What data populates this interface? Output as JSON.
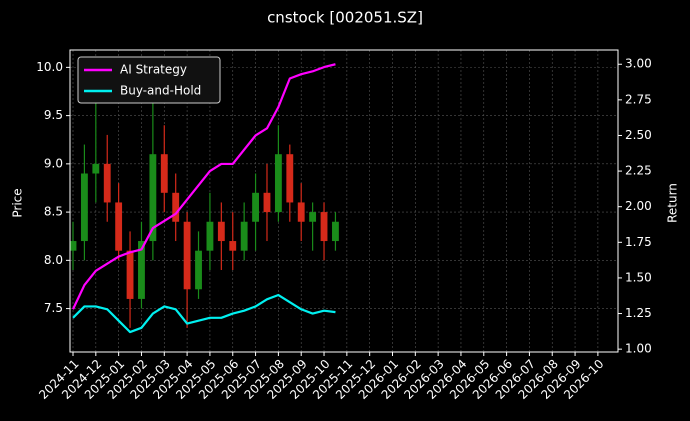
{
  "chart_data": {
    "type": "candlestick",
    "title": "cnstock [002051.SZ]",
    "y_label": "Price",
    "y2_label": "Return",
    "categories": [
      "2024-11",
      null,
      "2024-12",
      null,
      "2025-01",
      null,
      "2025-02",
      null,
      "2025-03",
      null,
      "2025-04",
      null,
      "2025-05",
      null,
      "2025-06",
      null,
      "2025-07",
      null,
      "2025-08",
      null,
      "2025-09",
      null,
      "2025-10",
      null,
      "2025-11",
      null,
      "2025-12",
      null,
      "2026-01",
      null,
      "2026-02",
      null,
      "2026-03",
      null,
      "2026-04",
      null,
      "2026-05",
      null,
      "2026-06",
      null,
      "2026-07",
      null,
      "2026-08",
      null,
      "2026-09",
      null,
      "2026-10",
      null
    ],
    "ohlc": {
      "open": [
        8.1,
        8.2,
        8.9,
        9.0,
        8.6,
        8.1,
        7.6,
        8.2,
        9.1,
        8.7,
        8.4,
        7.7,
        8.1,
        8.4,
        8.2,
        8.1,
        8.4,
        8.7,
        8.5,
        9.1,
        8.6,
        8.4,
        8.5,
        8.2,
        null,
        null,
        null,
        null,
        null,
        null,
        null,
        null,
        null,
        null,
        null,
        null,
        null,
        null,
        null,
        null,
        null,
        null,
        null,
        null,
        null,
        null,
        null,
        null
      ],
      "high": [
        8.4,
        9.2,
        9.8,
        9.3,
        8.8,
        8.3,
        8.4,
        9.7,
        9.4,
        8.9,
        8.5,
        8.3,
        8.7,
        8.6,
        8.5,
        8.6,
        8.9,
        9.0,
        9.4,
        9.2,
        8.8,
        8.6,
        8.6,
        8.5,
        null,
        null,
        null,
        null,
        null,
        null,
        null,
        null,
        null,
        null,
        null,
        null,
        null,
        null,
        null,
        null,
        null,
        null,
        null,
        null,
        null,
        null,
        null,
        null
      ],
      "low": [
        7.9,
        8.0,
        8.6,
        8.4,
        8.0,
        7.3,
        7.5,
        8.0,
        8.5,
        8.2,
        7.3,
        7.6,
        7.9,
        7.9,
        7.9,
        8.0,
        8.1,
        8.2,
        8.4,
        8.4,
        8.2,
        8.1,
        8.0,
        8.1,
        null,
        null,
        null,
        null,
        null,
        null,
        null,
        null,
        null,
        null,
        null,
        null,
        null,
        null,
        null,
        null,
        null,
        null,
        null,
        null,
        null,
        null,
        null,
        null
      ],
      "close": [
        8.2,
        8.9,
        9.0,
        8.6,
        8.1,
        7.6,
        8.2,
        9.1,
        8.7,
        8.4,
        7.7,
        8.1,
        8.4,
        8.2,
        8.1,
        8.4,
        8.7,
        8.5,
        9.1,
        8.6,
        8.4,
        8.5,
        8.2,
        8.4,
        null,
        null,
        null,
        null,
        null,
        null,
        null,
        null,
        null,
        null,
        null,
        null,
        null,
        null,
        null,
        null,
        null,
        null,
        null,
        null,
        null,
        null,
        null,
        null
      ],
      "up_color": "#1a8c1a",
      "down_color": "#d62a1a"
    },
    "series": [
      {
        "name": "AI Strategy",
        "color": "#ff00ff",
        "axis": "y2",
        "values": [
          1.28,
          1.45,
          1.55,
          1.6,
          1.65,
          1.68,
          1.7,
          1.85,
          1.9,
          1.95,
          2.05,
          2.15,
          2.25,
          2.3,
          2.3,
          2.4,
          2.5,
          2.55,
          2.7,
          2.9,
          2.93,
          2.95,
          2.98,
          3.0,
          null,
          null,
          null,
          null,
          null,
          null,
          null,
          null,
          null,
          null,
          null,
          null,
          null,
          null,
          null,
          null,
          null,
          null,
          null,
          null,
          null,
          null,
          null,
          null
        ]
      },
      {
        "name": "Buy-and-Hold",
        "color": "#00f0f0",
        "axis": "y2",
        "values": [
          1.22,
          1.3,
          1.3,
          1.28,
          1.2,
          1.12,
          1.15,
          1.25,
          1.3,
          1.28,
          1.18,
          1.2,
          1.22,
          1.22,
          1.25,
          1.27,
          1.3,
          1.35,
          1.38,
          1.33,
          1.28,
          1.25,
          1.27,
          1.26,
          null,
          null,
          null,
          null,
          null,
          null,
          null,
          null,
          null,
          null,
          null,
          null,
          null,
          null,
          null,
          null,
          null,
          null,
          null,
          null,
          null,
          null,
          null,
          null
        ]
      }
    ],
    "ylim": [
      7.05,
      10.18
    ],
    "yticks": [
      7.5,
      {
        "value": 8,
        "label": "8.0"
      },
      8.5,
      {
        "value": 9,
        "label": "9.0"
      },
      9.5,
      {
        "value": 10,
        "label": "10.0"
      }
    ],
    "y2lim": [
      0.98,
      3.1
    ],
    "y2ticks": [
      {
        "value": 1,
        "label": "1.00"
      },
      1.25,
      {
        "value": 1.5,
        "label": "1.50"
      },
      1.75,
      {
        "value": 2,
        "label": "2.00"
      },
      2.25,
      {
        "value": 2.5,
        "label": "2.50"
      },
      2.75,
      {
        "value": 3,
        "label": "3.00"
      }
    ],
    "grid": true,
    "legend": "upper left"
  }
}
